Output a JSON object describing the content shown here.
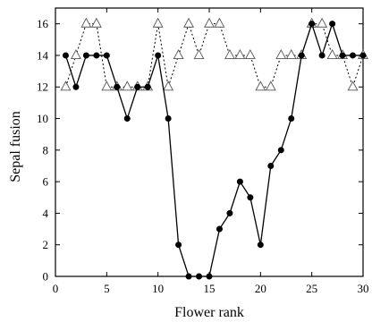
{
  "chart_data": {
    "type": "line",
    "title": "",
    "xlabel": "Flower rank",
    "ylabel": "Sepal fusion",
    "xlim": [
      0,
      30
    ],
    "ylim": [
      0,
      17
    ],
    "xticks": [
      0,
      5,
      10,
      15,
      20,
      25,
      30
    ],
    "yticks": [
      0,
      2,
      4,
      6,
      8,
      10,
      12,
      14,
      16
    ],
    "grid": false,
    "legend": "none",
    "series": [
      {
        "marker": "filled-circle",
        "line": "solid",
        "color": "#000000",
        "x": [
          1,
          2,
          3,
          4,
          5,
          6,
          7,
          8,
          9,
          10,
          11,
          12,
          13,
          14,
          15,
          16,
          17,
          18,
          19,
          20,
          21,
          22,
          23,
          24,
          25,
          26,
          27,
          28,
          29,
          30
        ],
        "y": [
          14,
          12,
          14,
          14,
          14,
          12,
          10,
          12,
          12,
          14,
          10,
          2,
          0,
          0,
          0,
          3,
          4,
          6,
          5,
          2,
          7,
          8,
          10,
          14,
          16,
          14,
          16,
          14,
          14,
          14
        ]
      },
      {
        "marker": "open-triangle",
        "line": "dotted",
        "color": "#000000",
        "x": [
          1,
          2,
          3,
          4,
          5,
          6,
          7,
          8,
          9,
          10,
          11,
          12,
          13,
          14,
          15,
          16,
          17,
          18,
          19,
          20,
          21,
          22,
          23,
          24,
          25,
          26,
          27,
          28,
          29,
          30
        ],
        "y": [
          12,
          14,
          16,
          16,
          12,
          12,
          12,
          12,
          12,
          16,
          12,
          14,
          16,
          14,
          16,
          16,
          14,
          14,
          14,
          12,
          12,
          14,
          14,
          14,
          16,
          16,
          14,
          14,
          12,
          14
        ]
      }
    ]
  }
}
